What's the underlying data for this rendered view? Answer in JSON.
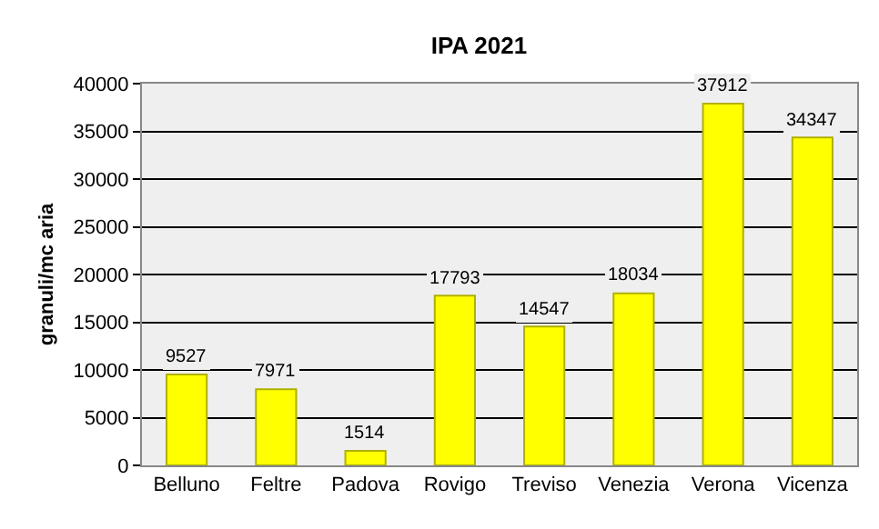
{
  "chart_data": {
    "type": "bar",
    "title": "IPA 2021",
    "ylabel": "granuli/mc aria",
    "categories": [
      "Belluno",
      "Feltre",
      "Padova",
      "Rovigo",
      "Treviso",
      "Venezia",
      "Verona",
      "Vicenza"
    ],
    "values": [
      9527,
      7971,
      1514,
      17793,
      14547,
      18034,
      37912,
      34347
    ],
    "color": "#ffff00",
    "ylim": [
      0,
      40000
    ],
    "yticks": [
      0,
      5000,
      10000,
      15000,
      20000,
      25000,
      30000,
      35000,
      40000
    ],
    "grid": "y",
    "data_labels": true
  }
}
